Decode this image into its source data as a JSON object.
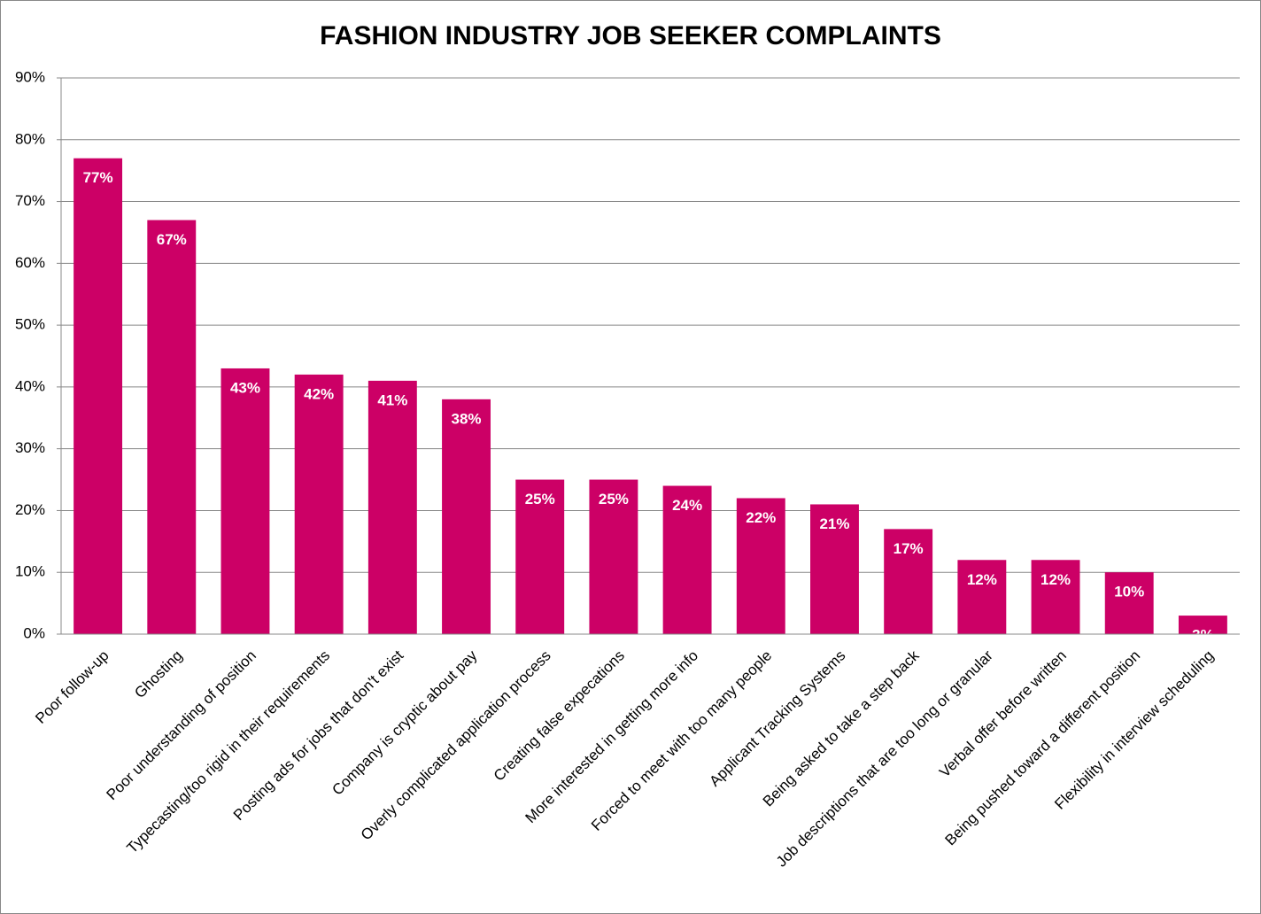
{
  "chart_data": {
    "type": "bar",
    "title": "FASHION INDUSTRY JOB SEEKER COMPLAINTS",
    "categories": [
      "Poor follow-up",
      "Ghosting",
      "Poor understanding of position",
      "Typecasting/too rigid in their requirements",
      "Posting ads for jobs that don't exist",
      "Company is cryptic about pay",
      "Overly complicated application process",
      "Creating false expecations",
      "More interested  in getting more info",
      "Forced to meet with too many people",
      "Applicant Tracking Systems",
      "Being asked to take a step back",
      "Job descriptions that are too long or granular",
      "Verbal offer before written",
      "Being pushed toward a different position",
      "Flexibility in interview scheduling"
    ],
    "values": [
      77,
      67,
      43,
      42,
      41,
      38,
      25,
      25,
      24,
      22,
      21,
      17,
      12,
      12,
      10,
      3
    ],
    "value_labels": [
      "77%",
      "67%",
      "43%",
      "42%",
      "41%",
      "38%",
      "25%",
      "25%",
      "24%",
      "22%",
      "21%",
      "17%",
      "12%",
      "12%",
      "10%",
      "3%"
    ],
    "color": "#cc0066",
    "ylim": [
      0,
      90
    ],
    "yticks": [
      {
        "value": 0,
        "label": "0%"
      },
      {
        "value": 10,
        "label": "10%"
      },
      {
        "value": 20,
        "label": "20%"
      },
      {
        "value": 30,
        "label": "30%"
      },
      {
        "value": 40,
        "label": "40%"
      },
      {
        "value": 50,
        "label": "50%"
      },
      {
        "value": 60,
        "label": "60%"
      },
      {
        "value": 70,
        "label": "70%"
      },
      {
        "value": 80,
        "label": "80%"
      },
      {
        "value": 90,
        "label": "90%"
      }
    ],
    "grid": true
  }
}
